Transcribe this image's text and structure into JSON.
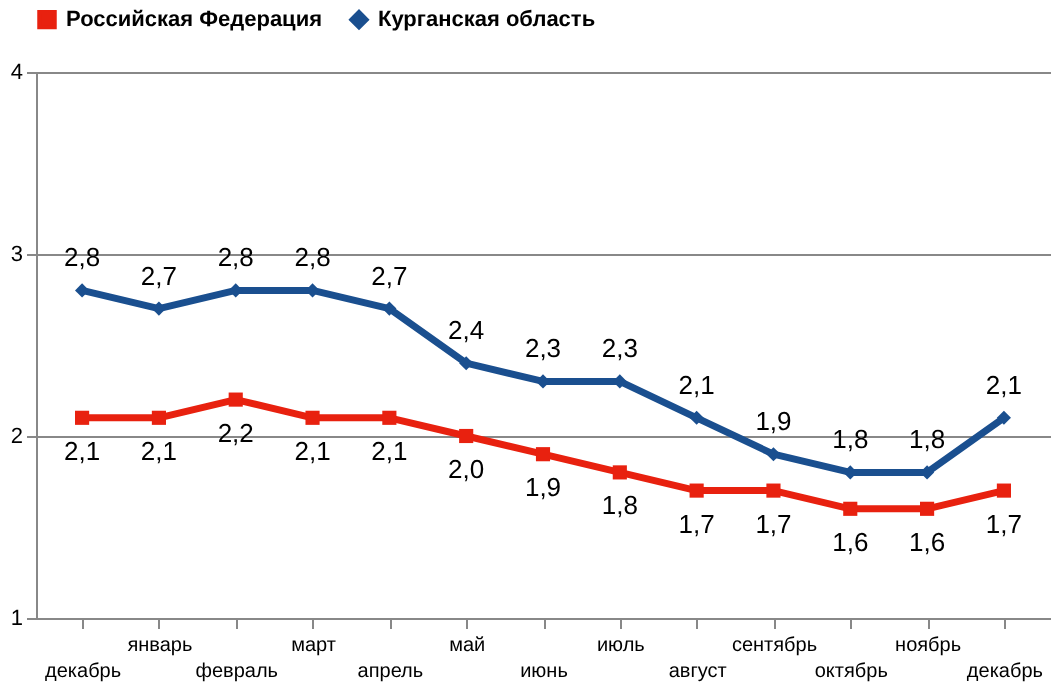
{
  "chart_data": {
    "type": "line",
    "categories": [
      "декабрь",
      "январь",
      "февраль",
      "март",
      "апрель",
      "май",
      "июнь",
      "июль",
      "август",
      "сентябрь",
      "октябрь",
      "ноябрь",
      "декабрь"
    ],
    "series": [
      {
        "name": "Российская Федерация",
        "color": "#e8210f",
        "marker": "square",
        "values": [
          2.1,
          2.1,
          2.2,
          2.1,
          2.1,
          2.0,
          1.9,
          1.8,
          1.7,
          1.7,
          1.6,
          1.6,
          1.7
        ],
        "value_labels": [
          "2,1",
          "2,1",
          "2,2",
          "2,1",
          "2,1",
          "2,0",
          "1,9",
          "1,8",
          "1,7",
          "1,7",
          "1,6",
          "1,6",
          "1,7"
        ]
      },
      {
        "name": "Курганская область",
        "color": "#1a4f8f",
        "marker": "diamond",
        "values": [
          2.8,
          2.7,
          2.8,
          2.8,
          2.7,
          2.4,
          2.3,
          2.3,
          2.1,
          1.9,
          1.8,
          1.8,
          2.1
        ],
        "value_labels": [
          "2,8",
          "2,7",
          "2,8",
          "2,8",
          "2,7",
          "2,4",
          "2,3",
          "2,3",
          "2,1",
          "1,9",
          "1,8",
          "1,8",
          "2,1"
        ]
      }
    ],
    "ylim": [
      1,
      4
    ],
    "yticks": [
      1,
      2,
      3,
      4
    ],
    "grid": "y",
    "legend": "top"
  }
}
